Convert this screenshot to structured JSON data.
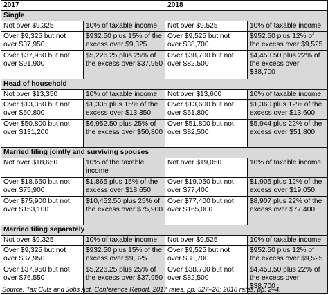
{
  "header": {
    "col_2017": "2017",
    "col_2018": "2018"
  },
  "sections": [
    {
      "title": "Single",
      "rows": [
        [
          "Not over $9,325",
          "10% of taxable income",
          "Not over $9,525",
          "10% of taxable income"
        ],
        [
          "Over $9,325 but not over $37,950",
          "$932.50 plus 15% of the excess over $9,325",
          "Over $9,525 but not over $38,700",
          "$952.50 plus 12% of the excess over $9,525"
        ],
        [
          "Over $37,950 but not over $91,900",
          "$5,226.25 plus 25% of the excess over $37,950",
          "Over $38,700 but not over $82,500",
          "$4,453.50 plus 22% of the excess over $38,700"
        ]
      ]
    },
    {
      "title": "Head of household",
      "rows": [
        [
          "Not over $13,350",
          "10% of taxable income",
          "Not over $13,600",
          "10% of taxable income"
        ],
        [
          "Over $13,350 but not over $50,800",
          "$1,335 plus 15% of the excess over $13,350",
          "Over $13,600 but not over $51,800",
          "$1,360 plus 12% of the excess over $13,600"
        ],
        [
          "Over $50,800 but not over $131,200",
          "$6,952.50 plus 25% of the excess over $50,800",
          "Over $51,800 but not over $82,500",
          "$5,944 plus 22% of the excess over $51,800"
        ]
      ]
    },
    {
      "title": "Married filing jointly and surviving spouses",
      "rows": [
        [
          "Not over $18,650",
          "10% of the taxable income",
          "Not over $19,050",
          "10% of taxable income"
        ],
        [
          "Over $18,650 but not over $75,900",
          "$1,865 plus 15% of the excess over $18,650",
          "Over $19,050 but not over $77,400",
          "$1,905 plus 12% of the excess over $19,050"
        ],
        [
          "Over $75,900 but not over $153,100",
          "$10,452.50 plus 25% of the excess over $75,900",
          "Over $77,400 but not over $165,000",
          "$8,907 plus 22% of the excess over $77,400"
        ]
      ]
    },
    {
      "title": "Married filing separately",
      "rows": [
        [
          "Not over $9,325",
          "10% of taxable income",
          "Not over $9,525",
          "10% of taxable income"
        ],
        [
          "Over $9,325 but not over $37,950",
          "$932.50 plus 15% of the excess over $9,325",
          "Over $9,525 but not over $38,700",
          "$952.50 plus 12% of the excess over $9,525"
        ],
        [
          "Over $37,950 but not over $76,550",
          "$5,226.25 plus 25% of the excess over $37,950",
          "Over $38,700 but not over $82,500",
          "$4,453.50 plus 22% of the excess over $38,700"
        ]
      ]
    }
  ],
  "source": "Source: Tax Cuts and Jobs Act, Conference Report. 2017 rates, pp. 527–28; 2018 rates, pp. 2–4."
}
